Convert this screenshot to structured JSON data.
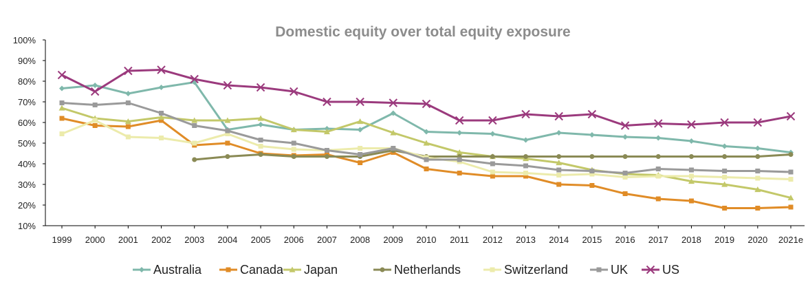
{
  "chart_data": {
    "type": "line",
    "title": "Domestic equity over total equity exposure",
    "xlabel": "",
    "ylabel": "",
    "x": [
      "1999",
      "2000",
      "2001",
      "2002",
      "2003",
      "2004",
      "2005",
      "2006",
      "2007",
      "2008",
      "2009",
      "2010",
      "2011",
      "2012",
      "2013",
      "2014",
      "2015",
      "2016",
      "2017",
      "2018",
      "2019",
      "2020",
      "2021e"
    ],
    "ylim": [
      10,
      100
    ],
    "yticks": [
      10,
      20,
      30,
      40,
      50,
      60,
      70,
      80,
      90,
      100
    ],
    "yticks_labels": [
      "10%",
      "20%",
      "30%",
      "40%",
      "50%",
      "60%",
      "70%",
      "80%",
      "90%",
      "100%"
    ],
    "grid": false,
    "legend_position": "bottom",
    "series": [
      {
        "name": "Australia",
        "color": "#7fb8ab",
        "marker": "diamond",
        "values": [
          76.5,
          78,
          74,
          77,
          79.5,
          56.5,
          59,
          56.5,
          57,
          56.5,
          64.5,
          55.5,
          55,
          54.5,
          51.5,
          55,
          54,
          53,
          52.5,
          51,
          48.5,
          47.5,
          45.5
        ]
      },
      {
        "name": "Canada",
        "color": "#e08c27",
        "marker": "square",
        "values": [
          62,
          58.5,
          58,
          61,
          49,
          50,
          45,
          44,
          44.5,
          40.5,
          45.5,
          37.5,
          35.5,
          34,
          34,
          30,
          29.5,
          25.5,
          23,
          22,
          18.5,
          18.5,
          19
        ]
      },
      {
        "name": "Japan",
        "color": "#c3c869",
        "marker": "triangle",
        "values": [
          67,
          62,
          60.5,
          62.5,
          61,
          61,
          62,
          56.5,
          55.5,
          60.5,
          55,
          50,
          45.5,
          43.5,
          42.5,
          40.5,
          37,
          35,
          34.5,
          31.5,
          30,
          27.5,
          23.5
        ]
      },
      {
        "name": "Netherlands",
        "color": "#8a8a55",
        "marker": "circle",
        "values": [
          null,
          null,
          null,
          null,
          42,
          43.5,
          44.5,
          43.5,
          43.5,
          43.5,
          46.5,
          43.5,
          43.5,
          43.5,
          43.5,
          43.5,
          43.5,
          43.5,
          43.5,
          43.5,
          43.5,
          43.5,
          44.5
        ]
      },
      {
        "name": "Switzerland",
        "color": "#ecebab",
        "marker": "square",
        "values": [
          54.5,
          61,
          53,
          52.5,
          50,
          54.5,
          48.5,
          47,
          46.5,
          47.5,
          47.5,
          43,
          41,
          36,
          35.5,
          34.5,
          35,
          33.5,
          34,
          34,
          33.5,
          33,
          32.5
        ]
      },
      {
        "name": "UK",
        "color": "#9a9a9a",
        "marker": "square",
        "values": [
          69.5,
          68.5,
          69.5,
          64.5,
          58.5,
          56,
          51.5,
          50,
          46.5,
          44.5,
          47.5,
          42,
          42,
          40,
          39,
          37,
          36.5,
          35.5,
          37.5,
          37,
          36.5,
          36.5,
          36
        ]
      },
      {
        "name": "US",
        "color": "#9b3a7d",
        "marker": "x",
        "values": [
          83,
          75,
          85,
          85.5,
          81,
          78,
          77,
          75,
          70,
          70,
          69.5,
          69,
          61,
          61,
          64,
          63,
          64,
          58.5,
          59.5,
          59,
          60,
          60,
          63
        ]
      }
    ]
  }
}
